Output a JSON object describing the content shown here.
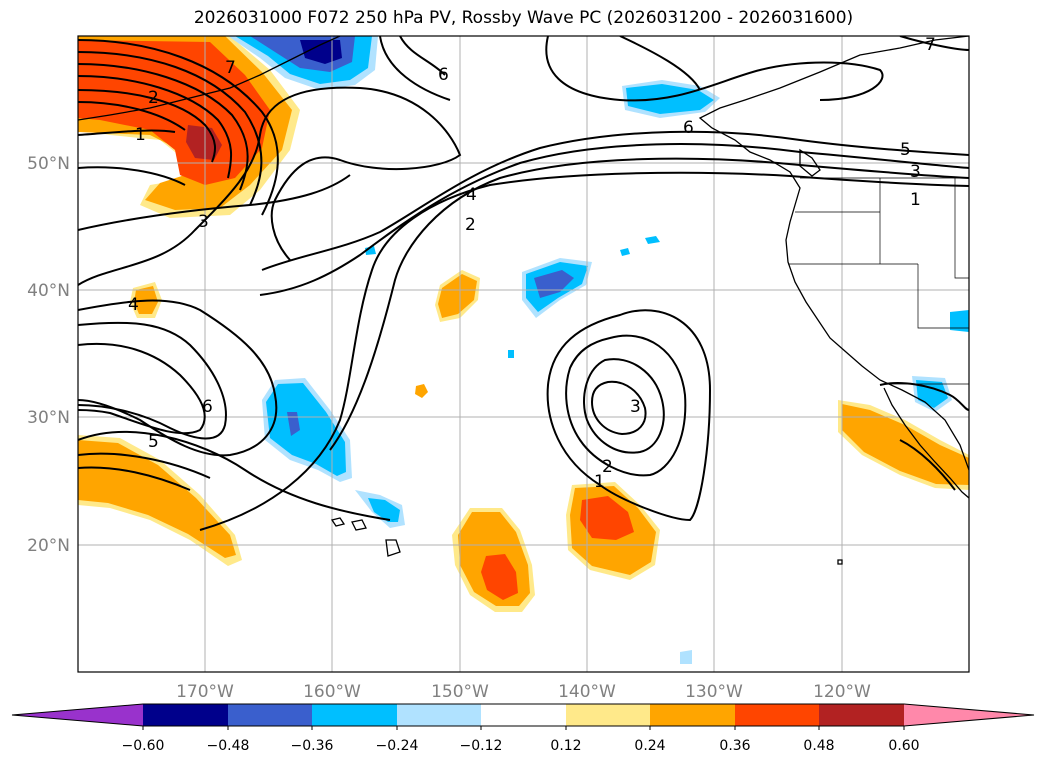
{
  "title": "2026031000 F072 250 hPa PV, Rossby Wave PC (2026031200 - 2026031600)",
  "lat_labels": [
    "50°N",
    "40°N",
    "30°N",
    "20°N"
  ],
  "lon_labels": [
    "170°W",
    "160°W",
    "150°W",
    "140°W",
    "130°W",
    "120°W"
  ],
  "colorbar": {
    "ticks": [
      "−0.60",
      "−0.48",
      "−0.36",
      "−0.24",
      "−0.12",
      "0.12",
      "0.24",
      "0.36",
      "0.48",
      "0.60"
    ],
    "colors": [
      "#9932cc",
      "#00008b",
      "#3a5fcd",
      "#00bfff",
      "#b0e2ff",
      "#ffffff",
      "#ffe98a",
      "#ffa500",
      "#ff4500",
      "#b22222",
      "#ff88aa"
    ]
  },
  "contour_labels": [
    {
      "id": "c7-nw",
      "text": "7"
    },
    {
      "id": "c2-nw",
      "text": "2"
    },
    {
      "id": "c1-nw",
      "text": "1"
    },
    {
      "id": "c3-mid",
      "text": "3"
    },
    {
      "id": "c4-jet",
      "text": "4"
    },
    {
      "id": "c2-jet",
      "text": "2"
    },
    {
      "id": "c6-top",
      "text": "6"
    },
    {
      "id": "c6-coast",
      "text": "6"
    },
    {
      "id": "c5-east",
      "text": "5"
    },
    {
      "id": "c3-east",
      "text": "3"
    },
    {
      "id": "c1-east",
      "text": "1"
    },
    {
      "id": "c4-west",
      "text": "4"
    },
    {
      "id": "c6-west",
      "text": "6"
    },
    {
      "id": "c5-west",
      "text": "5"
    },
    {
      "id": "c3-low",
      "text": "3"
    },
    {
      "id": "c2-low",
      "text": "2"
    },
    {
      "id": "c1-low",
      "text": "1"
    },
    {
      "id": "c7-ne",
      "text": "7"
    }
  ]
}
